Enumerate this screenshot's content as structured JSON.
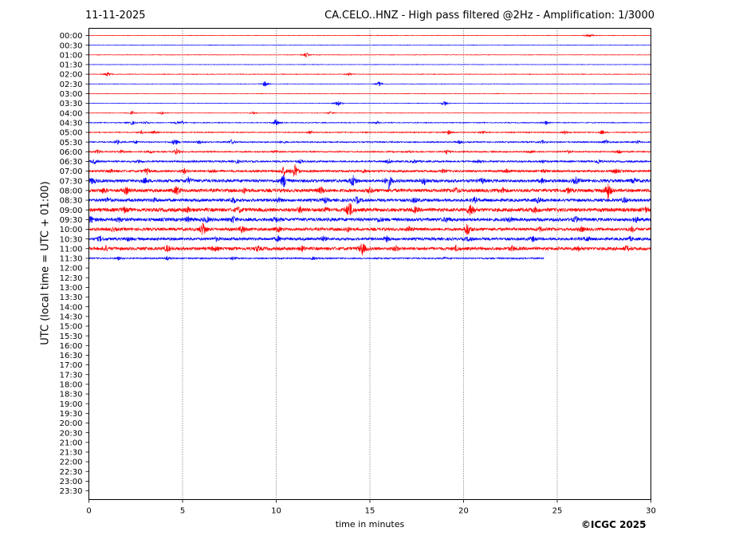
{
  "header": {
    "date": "11-11-2025",
    "title": "CA.CELO..HNZ - High pass filtered @2Hz - Amplification: 1/3000"
  },
  "footer": {
    "copyright": "©ICGC 2025"
  },
  "colors": {
    "red": "#ff0000",
    "blue": "#0000ff",
    "axis": "#000000"
  },
  "chart_data": {
    "type": "line",
    "title": "CA.CELO..HNZ - High pass filtered @2Hz - Amplification: 1/3000",
    "xlabel": "time in minutes",
    "ylabel": "UTC (local time = UTC + 01:00)",
    "xlim": [
      0,
      30
    ],
    "xticks": [
      0,
      5,
      10,
      15,
      20,
      25,
      30
    ],
    "vertical_gridlines": [
      5,
      10,
      15,
      20,
      25
    ],
    "rows": [
      "00:00",
      "00:30",
      "01:00",
      "01:30",
      "02:00",
      "02:30",
      "03:00",
      "03:30",
      "04:00",
      "04:30",
      "05:00",
      "05:30",
      "06:00",
      "06:30",
      "07:00",
      "07:30",
      "08:00",
      "08:30",
      "09:00",
      "09:30",
      "10:00",
      "10:30",
      "11:00",
      "11:30",
      "12:00",
      "12:30",
      "13:00",
      "13:30",
      "14:00",
      "14:30",
      "15:00",
      "15:30",
      "16:00",
      "16:30",
      "17:00",
      "17:30",
      "18:00",
      "18:30",
      "19:00",
      "19:30",
      "20:00",
      "20:30",
      "21:00",
      "21:30",
      "22:00",
      "22:30",
      "23:00",
      "23:30"
    ],
    "traces": [
      {
        "row": "00:00",
        "color": "red",
        "noise": 0.3,
        "end": 30,
        "events": [
          [
            26.7,
            3
          ]
        ]
      },
      {
        "row": "00:30",
        "color": "blue",
        "noise": 0.3,
        "end": 30,
        "events": []
      },
      {
        "row": "01:00",
        "color": "red",
        "noise": 0.3,
        "end": 30,
        "events": [
          [
            11.6,
            3
          ]
        ]
      },
      {
        "row": "01:30",
        "color": "blue",
        "noise": 0.3,
        "end": 30,
        "events": []
      },
      {
        "row": "02:00",
        "color": "red",
        "noise": 0.4,
        "end": 30,
        "events": [
          [
            1.0,
            3
          ],
          [
            13.9,
            2
          ]
        ]
      },
      {
        "row": "02:30",
        "color": "blue",
        "noise": 0.3,
        "end": 30,
        "events": [
          [
            9.4,
            4
          ],
          [
            15.5,
            3
          ]
        ]
      },
      {
        "row": "03:00",
        "color": "red",
        "noise": 0.3,
        "end": 30,
        "events": []
      },
      {
        "row": "03:30",
        "color": "blue",
        "noise": 0.3,
        "end": 30,
        "events": [
          [
            13.3,
            5
          ],
          [
            19.0,
            4
          ]
        ]
      },
      {
        "row": "04:00",
        "color": "red",
        "noise": 0.3,
        "end": 30,
        "events": [
          [
            2.3,
            3
          ],
          [
            3.9,
            2
          ],
          [
            8.8,
            2
          ],
          [
            12.9,
            2
          ]
        ]
      },
      {
        "row": "04:30",
        "color": "blue",
        "noise": 0.5,
        "end": 30,
        "events": [
          [
            2.3,
            3
          ],
          [
            3.0,
            2
          ],
          [
            4.7,
            2
          ],
          [
            5.0,
            2
          ],
          [
            10.0,
            5
          ],
          [
            15.4,
            2
          ],
          [
            24.4,
            3
          ]
        ]
      },
      {
        "row": "05:00",
        "color": "red",
        "noise": 0.6,
        "end": 30,
        "events": [
          [
            2.8,
            2
          ],
          [
            3.5,
            2
          ],
          [
            11.8,
            2
          ],
          [
            19.2,
            3
          ],
          [
            21.0,
            2
          ],
          [
            25.4,
            2
          ],
          [
            27.4,
            3
          ]
        ]
      },
      {
        "row": "05:30",
        "color": "blue",
        "noise": 0.8,
        "end": 30,
        "events": [
          [
            1.5,
            3
          ],
          [
            2.5,
            2
          ],
          [
            4.6,
            5
          ],
          [
            5.9,
            2
          ],
          [
            7.6,
            3
          ],
          [
            10.3,
            2
          ],
          [
            19.8,
            2
          ],
          [
            24.2,
            2
          ],
          [
            27.6,
            3
          ],
          [
            29.3,
            2
          ]
        ]
      },
      {
        "row": "06:00",
        "color": "red",
        "noise": 0.8,
        "end": 30,
        "events": [
          [
            0.5,
            3
          ],
          [
            1.7,
            2
          ],
          [
            3.3,
            2
          ],
          [
            4.7,
            4
          ],
          [
            10.0,
            2
          ],
          [
            17.1,
            2
          ],
          [
            19.1,
            3
          ],
          [
            23.6,
            2
          ],
          [
            25.6,
            2
          ],
          [
            28.3,
            3
          ]
        ]
      },
      {
        "row": "06:30",
        "color": "blue",
        "noise": 1.1,
        "end": 30,
        "events": [
          [
            0.3,
            3
          ],
          [
            2.7,
            2
          ],
          [
            5.5,
            2
          ],
          [
            7.9,
            2
          ],
          [
            11.3,
            2
          ],
          [
            16.0,
            3
          ],
          [
            17.4,
            2
          ],
          [
            20.8,
            2
          ],
          [
            24.2,
            2
          ],
          [
            27.2,
            3
          ]
        ]
      },
      {
        "row": "07:00",
        "color": "red",
        "noise": 1.4,
        "end": 30,
        "events": [
          [
            1.2,
            2
          ],
          [
            3.1,
            4
          ],
          [
            5.1,
            3
          ],
          [
            6.6,
            2
          ],
          [
            10.4,
            6
          ],
          [
            11.0,
            10
          ],
          [
            14.7,
            2
          ],
          [
            18.9,
            2
          ],
          [
            22.3,
            2
          ],
          [
            24.3,
            2
          ],
          [
            28.1,
            3
          ]
        ]
      },
      {
        "row": "07:30",
        "color": "blue",
        "noise": 1.9,
        "end": 30,
        "events": [
          [
            0.2,
            4
          ],
          [
            3.0,
            3
          ],
          [
            5.3,
            4
          ],
          [
            10.4,
            9
          ],
          [
            14.1,
            8
          ],
          [
            16.0,
            10
          ],
          [
            17.9,
            5
          ],
          [
            21.0,
            3
          ],
          [
            24.2,
            3
          ],
          [
            26.0,
            4
          ],
          [
            29.1,
            3
          ]
        ]
      },
      {
        "row": "08:00",
        "color": "red",
        "noise": 2.1,
        "end": 30,
        "events": [
          [
            0.8,
            3
          ],
          [
            2.0,
            4
          ],
          [
            4.7,
            6
          ],
          [
            8.3,
            3
          ],
          [
            12.4,
            4
          ],
          [
            15.0,
            3
          ],
          [
            19.6,
            3
          ],
          [
            22.1,
            3
          ],
          [
            25.6,
            3
          ],
          [
            27.7,
            12
          ]
        ]
      },
      {
        "row": "08:30",
        "color": "blue",
        "noise": 1.9,
        "end": 30,
        "events": [
          [
            1.0,
            3
          ],
          [
            3.5,
            2
          ],
          [
            7.7,
            4
          ],
          [
            10.1,
            3
          ],
          [
            12.6,
            3
          ],
          [
            14.3,
            4
          ],
          [
            17.4,
            3
          ],
          [
            20.6,
            3
          ],
          [
            24.0,
            3
          ],
          [
            28.6,
            3
          ]
        ]
      },
      {
        "row": "09:00",
        "color": "red",
        "noise": 2.3,
        "end": 30,
        "events": [
          [
            1.9,
            3
          ],
          [
            5.3,
            3
          ],
          [
            8.0,
            3
          ],
          [
            11.3,
            4
          ],
          [
            12.6,
            3
          ],
          [
            13.9,
            12
          ],
          [
            17.4,
            3
          ],
          [
            20.4,
            9
          ],
          [
            23.8,
            3
          ],
          [
            29.7,
            3
          ]
        ]
      },
      {
        "row": "09:30",
        "color": "blue",
        "noise": 2.1,
        "end": 30,
        "events": [
          [
            0.1,
            4
          ],
          [
            1.6,
            3
          ],
          [
            5.3,
            3
          ],
          [
            6.3,
            3
          ],
          [
            7.7,
            4
          ],
          [
            10.0,
            3
          ],
          [
            15.5,
            3
          ],
          [
            19.1,
            3
          ],
          [
            22.5,
            3
          ],
          [
            26.0,
            3
          ],
          [
            29.2,
            3
          ]
        ]
      },
      {
        "row": "10:00",
        "color": "red",
        "noise": 1.9,
        "end": 30,
        "events": [
          [
            1.3,
            2
          ],
          [
            6.1,
            10
          ],
          [
            8.2,
            5
          ],
          [
            10.1,
            3
          ],
          [
            13.8,
            3
          ],
          [
            17.1,
            3
          ],
          [
            20.2,
            9
          ],
          [
            24.1,
            3
          ],
          [
            26.3,
            3
          ],
          [
            29.0,
            3
          ]
        ]
      },
      {
        "row": "10:30",
        "color": "blue",
        "noise": 1.8,
        "end": 30,
        "events": [
          [
            0.6,
            3
          ],
          [
            2.1,
            2
          ],
          [
            6.8,
            2
          ],
          [
            10.1,
            3
          ],
          [
            12.5,
            3
          ],
          [
            15.9,
            3
          ],
          [
            20.3,
            3
          ],
          [
            23.7,
            3
          ],
          [
            26.6,
            3
          ],
          [
            28.9,
            2
          ]
        ]
      },
      {
        "row": "11:00",
        "color": "red",
        "noise": 2.0,
        "end": 30,
        "events": [
          [
            0.9,
            3
          ],
          [
            4.2,
            4
          ],
          [
            6.7,
            3
          ],
          [
            9.0,
            3
          ],
          [
            11.4,
            3
          ],
          [
            14.6,
            9
          ],
          [
            16.4,
            3
          ],
          [
            19.6,
            3
          ],
          [
            22.6,
            3
          ],
          [
            26.1,
            3
          ],
          [
            28.7,
            3
          ]
        ]
      },
      {
        "row": "11:30",
        "color": "blue",
        "noise": 0.9,
        "end": 24.3,
        "events": [
          [
            1.6,
            2
          ],
          [
            4.2,
            2
          ],
          [
            7.7,
            2
          ],
          [
            12.0,
            2
          ],
          [
            19.0,
            1
          ]
        ]
      }
    ]
  }
}
